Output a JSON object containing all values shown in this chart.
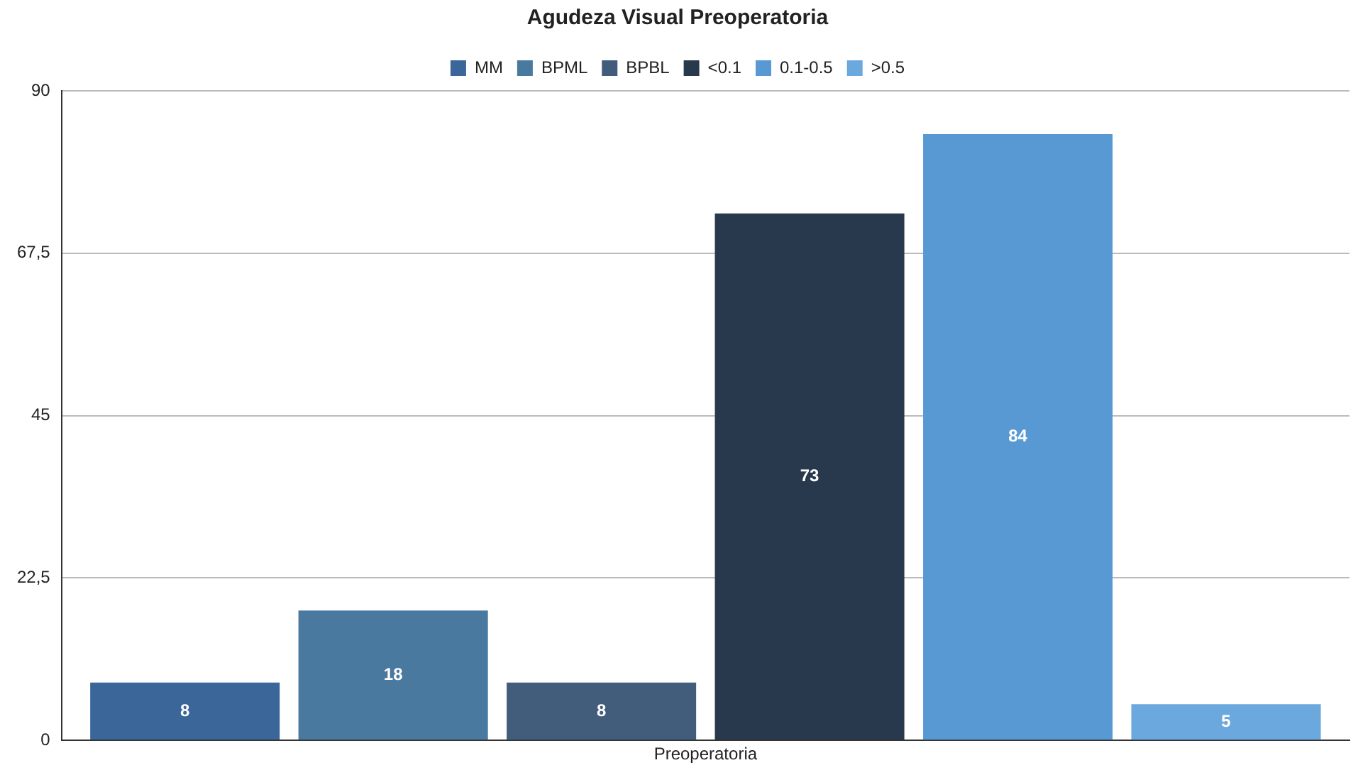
{
  "chart_data": {
    "type": "bar",
    "title": "Agudeza Visual Preoperatoria",
    "categories": [
      "Preoperatoria"
    ],
    "series": [
      {
        "name": "MM",
        "color": "#3a6699",
        "values": [
          8
        ]
      },
      {
        "name": "BPML",
        "color": "#4a79a0",
        "values": [
          18
        ]
      },
      {
        "name": "BPBL",
        "color": "#425d7c",
        "values": [
          8
        ]
      },
      {
        "name": "<0.1",
        "color": "#28384d",
        "values": [
          73
        ]
      },
      {
        "name": "0.1-0.5",
        "color": "#5899d3",
        "values": [
          84
        ]
      },
      {
        "name": ">0.5",
        "color": "#6aa8dd",
        "values": [
          5
        ]
      }
    ],
    "ylim": [
      0,
      90
    ],
    "yticks": [
      0,
      {
        "value": 22.5,
        "label": "22,5"
      },
      45,
      {
        "value": 67.5,
        "label": "67,5"
      },
      90
    ],
    "grid": "y",
    "legend": "top",
    "data_labels": true
  }
}
